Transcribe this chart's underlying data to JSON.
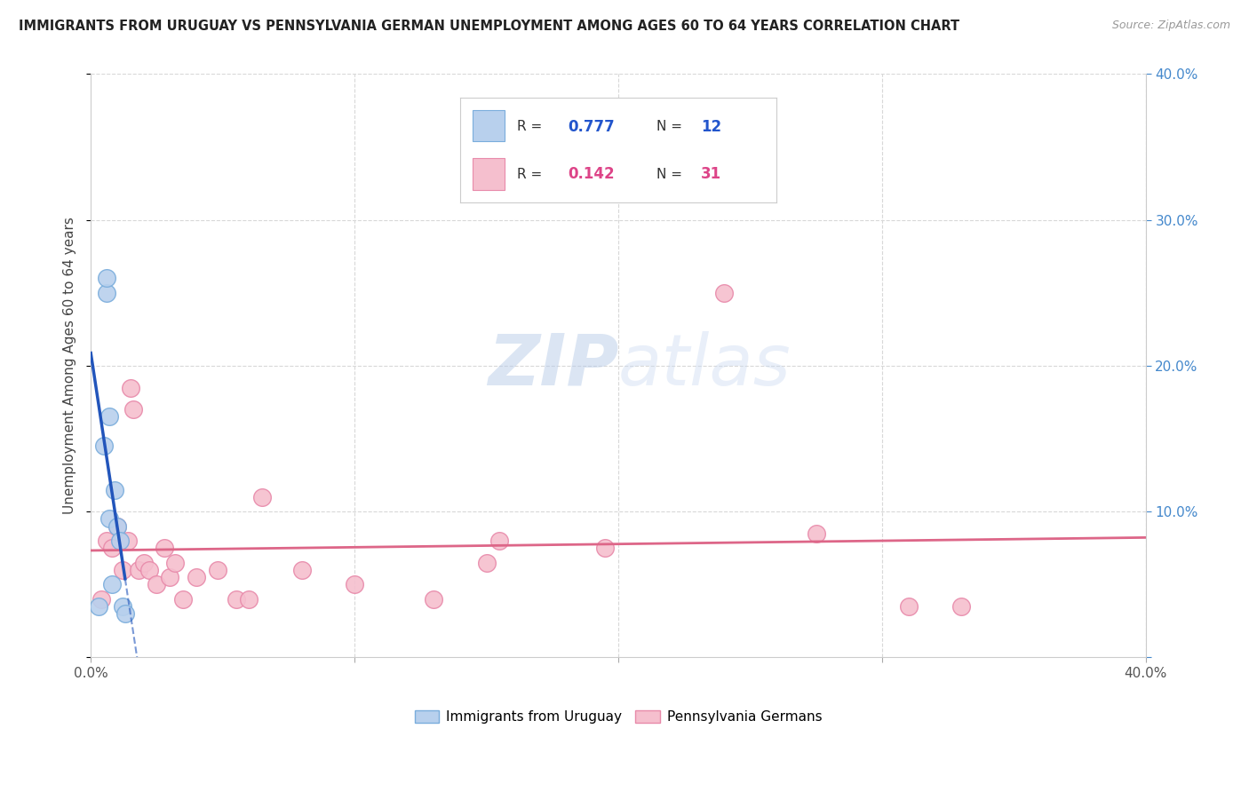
{
  "title": "IMMIGRANTS FROM URUGUAY VS PENNSYLVANIA GERMAN UNEMPLOYMENT AMONG AGES 60 TO 64 YEARS CORRELATION CHART",
  "source": "Source: ZipAtlas.com",
  "ylabel": "Unemployment Among Ages 60 to 64 years",
  "xlim": [
    0,
    0.4
  ],
  "ylim": [
    0,
    0.4
  ],
  "xticks_minor": [
    0.0,
    0.1,
    0.2,
    0.3,
    0.4
  ],
  "xticklabels_ends": {
    "0.0": "0.0%",
    "40.0": "40.0%"
  },
  "yticks": [
    0.0,
    0.1,
    0.2,
    0.3,
    0.4
  ],
  "yticklabels_right": [
    "",
    "10.0%",
    "20.0%",
    "30.0%",
    "40.0%"
  ],
  "background_color": "#ffffff",
  "grid_color": "#d8d8d8",
  "uruguay_color": "#b8d0ed",
  "uruguay_edge_color": "#7aaddc",
  "penn_color": "#f5bfce",
  "penn_edge_color": "#e88aaa",
  "uruguay_line_color": "#2255bb",
  "penn_line_color": "#dd6688",
  "watermark_color": "#ccddf5",
  "uruguay_R": "0.777",
  "uruguay_N": "12",
  "penn_R": "0.142",
  "penn_N": "31",
  "corr_box_text_color": "#2255cc",
  "corr_box_pink_color": "#dd4488",
  "uruguay_points_x": [
    0.003,
    0.005,
    0.006,
    0.006,
    0.007,
    0.007,
    0.008,
    0.009,
    0.01,
    0.011,
    0.012,
    0.013
  ],
  "uruguay_points_y": [
    0.035,
    0.145,
    0.25,
    0.26,
    0.095,
    0.165,
    0.05,
    0.115,
    0.09,
    0.08,
    0.035,
    0.03
  ],
  "penn_points_x": [
    0.004,
    0.006,
    0.008,
    0.01,
    0.012,
    0.014,
    0.015,
    0.016,
    0.018,
    0.02,
    0.022,
    0.025,
    0.028,
    0.03,
    0.032,
    0.035,
    0.04,
    0.048,
    0.055,
    0.06,
    0.065,
    0.08,
    0.1,
    0.13,
    0.15,
    0.155,
    0.195,
    0.24,
    0.275,
    0.31,
    0.33
  ],
  "penn_points_y": [
    0.04,
    0.08,
    0.075,
    0.09,
    0.06,
    0.08,
    0.185,
    0.17,
    0.06,
    0.065,
    0.06,
    0.05,
    0.075,
    0.055,
    0.065,
    0.04,
    0.055,
    0.06,
    0.04,
    0.04,
    0.11,
    0.06,
    0.05,
    0.04,
    0.065,
    0.08,
    0.075,
    0.25,
    0.085,
    0.035,
    0.035
  ],
  "legend_entries": [
    "Immigrants from Uruguay",
    "Pennsylvania Germans"
  ]
}
